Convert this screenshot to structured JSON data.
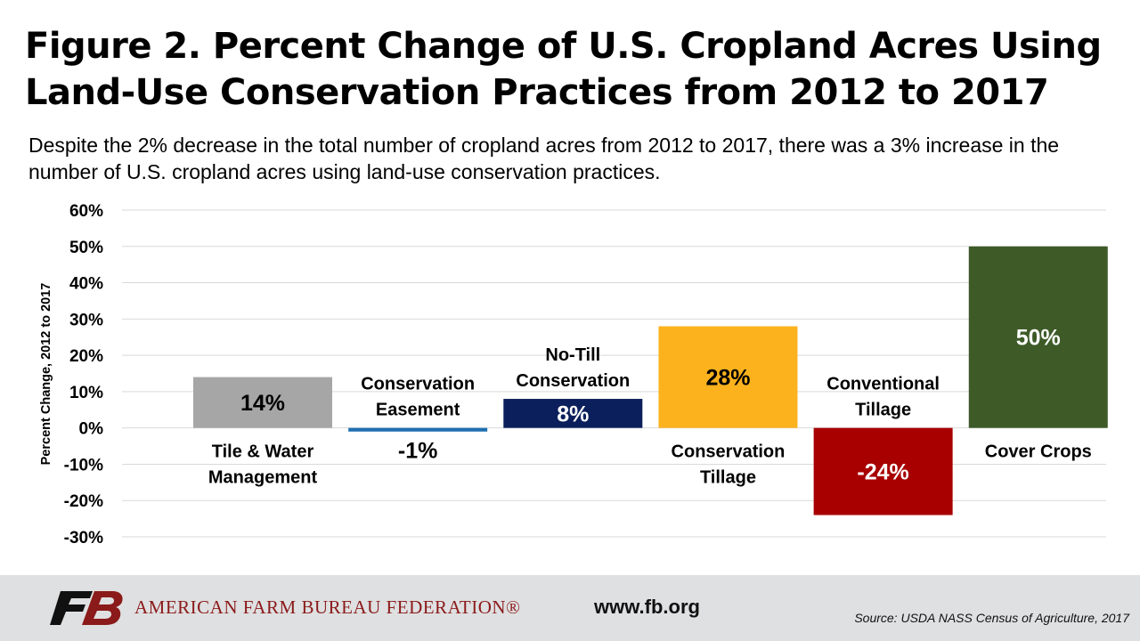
{
  "chart_data": {
    "type": "bar",
    "title": "Figure 2. Percent Change of U.S. Cropland Acres Using Land-Use Conservation Practices from 2012 to 2017",
    "subtitle": "Despite the 2% decrease in the total number of cropland acres from 2012 to 2017, there was a 3% increase in the number of U.S. cropland acres using land-use conservation practices.",
    "ylabel": "Percent Change, 2012 to 2017",
    "xlabel": "",
    "ylim": [
      -30,
      60
    ],
    "yticks": [
      60,
      50,
      40,
      30,
      20,
      10,
      0,
      -10,
      -20,
      -30
    ],
    "ytick_labels": [
      "60%",
      "50%",
      "40%",
      "30%",
      "20%",
      "10%",
      "0%",
      "-10%",
      "-20%",
      "-30%"
    ],
    "grid": true,
    "categories": [
      {
        "lines": [
          "Tile & Water",
          "Management"
        ],
        "label_position": "below"
      },
      {
        "lines": [
          "Conservation",
          "Easement"
        ],
        "label_position": "above"
      },
      {
        "lines": [
          "No-Till",
          "Conservation"
        ],
        "label_position": "above"
      },
      {
        "lines": [
          "Conservation",
          "Tillage"
        ],
        "label_position": "below"
      },
      {
        "lines": [
          "Conventional",
          "Tillage"
        ],
        "label_position": "above"
      },
      {
        "lines": [
          "Cover Crops"
        ],
        "label_position": "below"
      }
    ],
    "values": [
      14,
      -1,
      8,
      28,
      -24,
      50
    ],
    "value_labels": [
      "14%",
      "-1%",
      "8%",
      "28%",
      "-24%",
      "50%"
    ],
    "colors": [
      "#a6a6a6",
      "#1f6fb2",
      "#0b1f5c",
      "#fbb21d",
      "#a80000",
      "#3d5a27"
    ],
    "value_label_colors": [
      "#000000",
      "#000000",
      "#ffffff",
      "#000000",
      "#ffffff",
      "#ffffff"
    ]
  },
  "footer": {
    "org_name": "AMERICAN FARM BUREAU FEDERATION®",
    "url": "www.fb.org",
    "source": "Source: USDA NASS Census of Agriculture, 2017",
    "logo_icon": "fb-logo-icon",
    "brand_color": "#8b1a1a"
  }
}
